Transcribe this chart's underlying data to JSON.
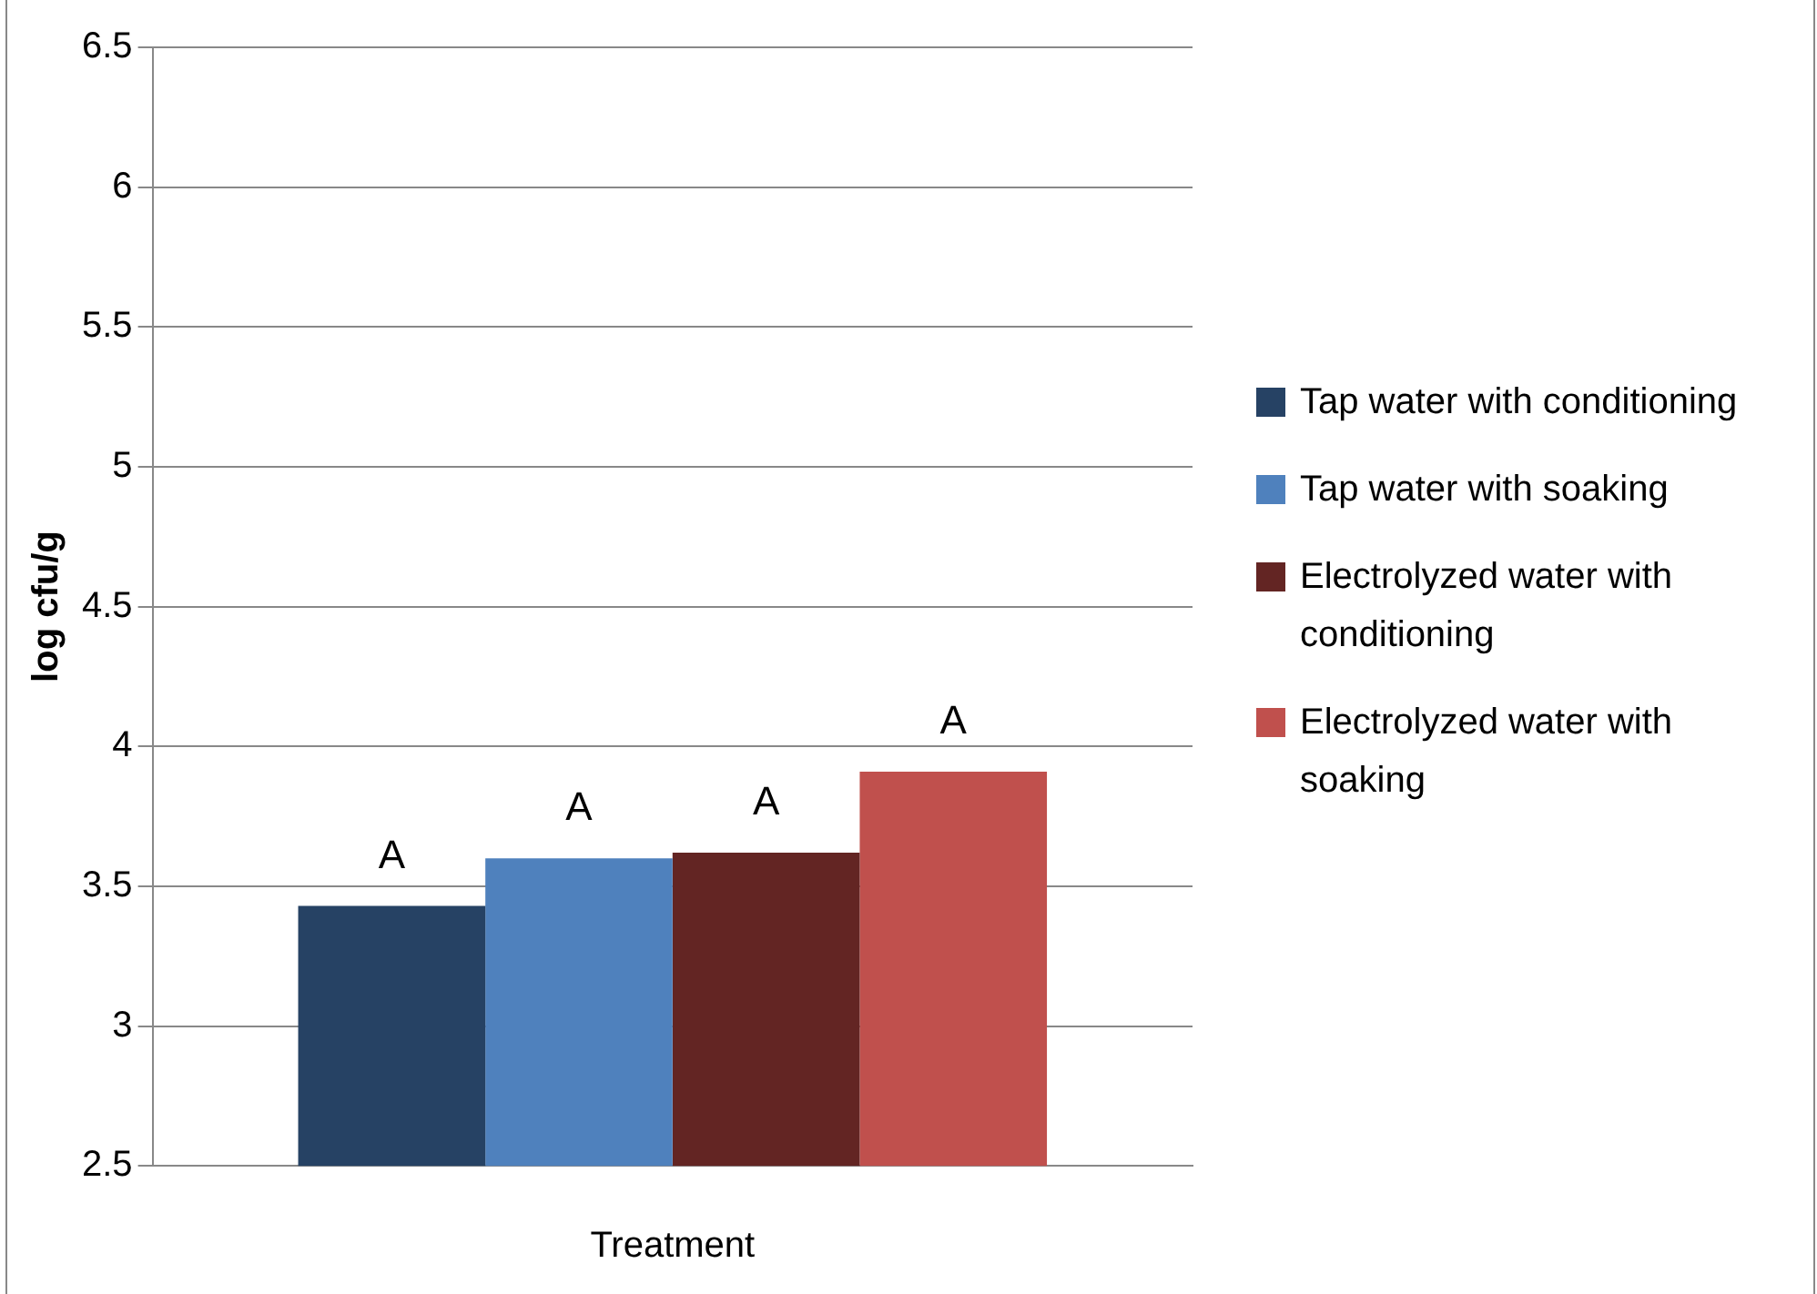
{
  "chart_data": {
    "type": "bar",
    "xlabel": "Treatment",
    "ylabel": "log cfu/g",
    "categories": [
      null
    ],
    "series": [
      {
        "name": "Tap water with conditioning",
        "color": "#264264",
        "values": [
          3.43
        ]
      },
      {
        "name": "Tap water with soaking",
        "color": "#4f81bd",
        "values": [
          3.6
        ]
      },
      {
        "name": "Electrolyzed water with conditioning",
        "color": "#632523",
        "values": [
          3.62
        ]
      },
      {
        "name": "Electrolyzed water with soaking",
        "color": "#c0504d",
        "values": [
          3.91
        ]
      }
    ],
    "ylim": [
      2.5,
      6.5
    ],
    "yticks": [
      {
        "value": 2.5,
        "label": "2.5"
      },
      {
        "value": 3,
        "label": "3"
      },
      {
        "value": 3.5,
        "label": "3.5"
      },
      {
        "value": 4,
        "label": "4"
      },
      {
        "value": 4.5,
        "label": "4.5"
      },
      {
        "value": 5,
        "label": "5"
      },
      {
        "value": 5.5,
        "label": "5.5"
      },
      {
        "value": 6,
        "label": "6"
      },
      {
        "value": 6.5,
        "label": "6.5"
      }
    ],
    "grid": "y",
    "legend": "right",
    "annotations": [
      "A",
      "A",
      "A",
      "A"
    ]
  }
}
